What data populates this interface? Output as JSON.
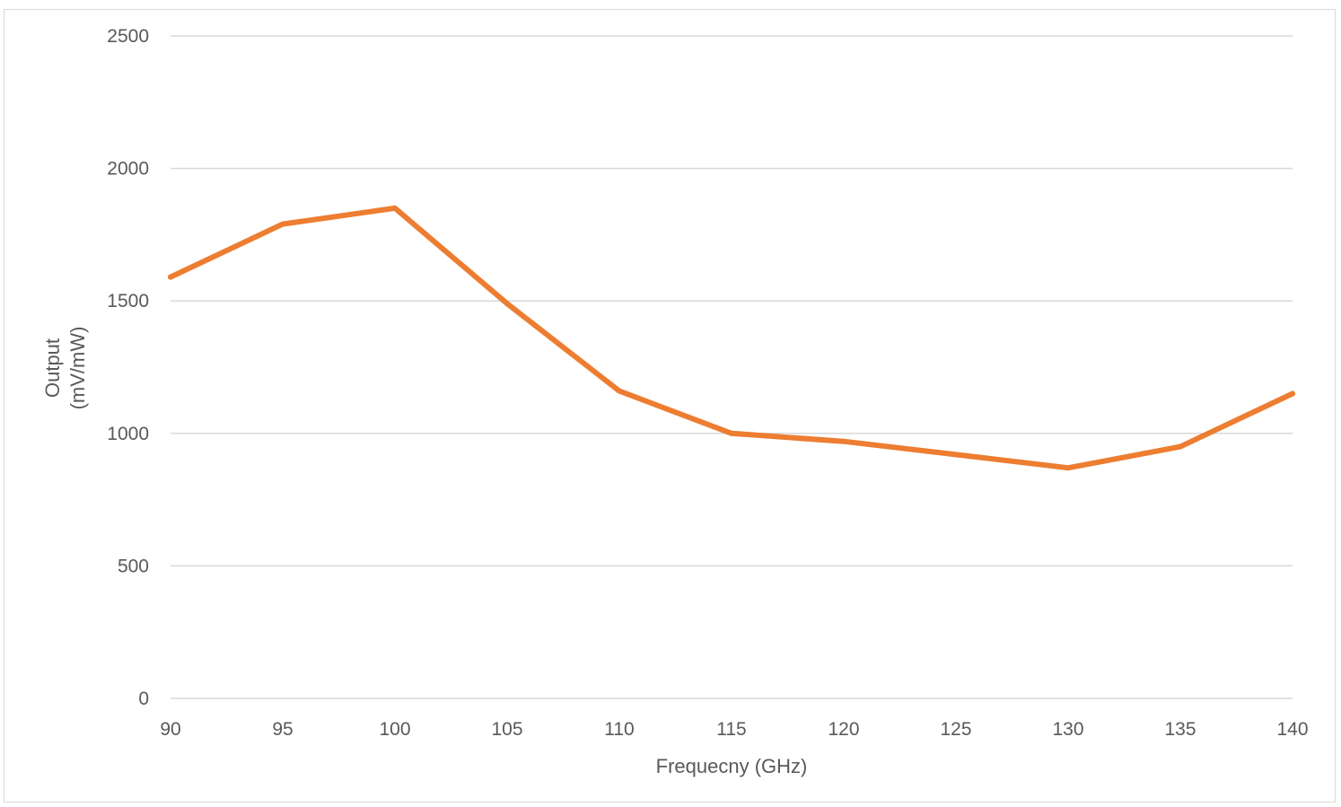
{
  "chart_data": {
    "type": "line",
    "title": "",
    "xlabel": "Frequecny (GHz)",
    "ylabel_lines": [
      "Output",
      "(mV/mW)"
    ],
    "x": [
      90,
      95,
      100,
      105,
      110,
      115,
      120,
      125,
      130,
      135,
      140
    ],
    "xticks": [
      "90",
      "95",
      "100",
      "105",
      "110",
      "115",
      "120",
      "125",
      "130",
      "135",
      "140"
    ],
    "yticks": [
      "0",
      "500",
      "1000",
      "1500",
      "2000",
      "2500"
    ],
    "ytick_values": [
      0,
      500,
      1000,
      1500,
      2000,
      2500
    ],
    "xlim": [
      90,
      140
    ],
    "ylim": [
      0,
      2500
    ],
    "grid": "horizontal",
    "legend": "none",
    "series": [
      {
        "values": [
          1590,
          1790,
          1850,
          1490,
          1160,
          1000,
          970,
          920,
          870,
          950,
          1150
        ],
        "color": "#ED7D31"
      }
    ],
    "colors": {
      "gridline": "#d9d9d9",
      "text": "#595959",
      "line": "#ED7D31"
    }
  }
}
